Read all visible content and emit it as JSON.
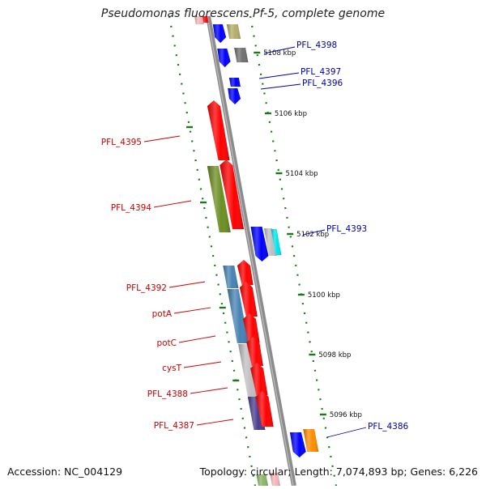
{
  "title": "Pseudomonas fluorescens Pf-5, complete genome",
  "accession_label": "Accession: NC_004129",
  "summary_label": "Topology: circular; Length: 7,074,893 bp; Genes: 6,226",
  "colors": {
    "backbone": "#8c8c8c",
    "tick": "#1a7a1a",
    "label_reverse": "#cc0000",
    "label_forward": "#0000aa"
  },
  "scale": {
    "unit": "kbp",
    "tick_labels": [
      "5108 kbp",
      "5106 kbp",
      "5104 kbp",
      "5102 kbp",
      "5100 kbp",
      "5098 kbp",
      "5096 kbp"
    ]
  },
  "genes": {
    "reverse_strand": [
      {
        "label": "PFL_4395",
        "color": "#ff0000"
      },
      {
        "label": "PFL_4394",
        "color": "#ff0000"
      },
      {
        "label": "PFL_4392",
        "color": "#ff0000"
      },
      {
        "label": "potA",
        "color": "#ff0000"
      },
      {
        "label": "potC",
        "color": "#ff0000"
      },
      {
        "label": "cysT",
        "color": "#ff0000"
      },
      {
        "label": "PFL_4388",
        "color": "#ff0000"
      },
      {
        "label": "PFL_4387",
        "color": "#ff0000"
      }
    ],
    "forward_strand": [
      {
        "label": "PFL_4398",
        "color": "#0000ff"
      },
      {
        "label": "PFL_4397",
        "color": "#0000ff"
      },
      {
        "label": "PFL_4396",
        "color": "#0000ff"
      },
      {
        "label": "PFL_4393",
        "color": "#0000ff"
      },
      {
        "label": "PFL_4386",
        "color": "#0000ff"
      }
    ]
  },
  "feature_colors": {
    "khaki": "#b5ad6c",
    "gray": "#707070",
    "olive": "#6b8e23",
    "steelblue": "#4682b4",
    "silver": "#c0c0c0",
    "indigo": "#483d8b",
    "cyan": "#00e5ee",
    "orange": "#ff8c00",
    "pink": "#f4b6b6",
    "lightgreen": "#8fb56a"
  }
}
